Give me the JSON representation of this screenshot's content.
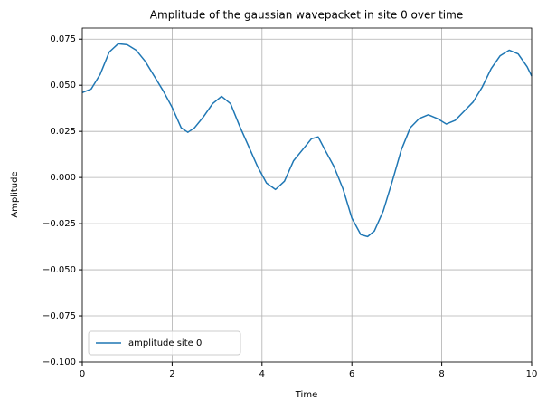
{
  "chart_data": {
    "type": "line",
    "title": "Amplitude of the gaussian wavepacket in site 0 over time",
    "xlabel": "Time",
    "ylabel": "Amplitude",
    "x": [
      0,
      0.2,
      0.4,
      0.6,
      0.8,
      1.0,
      1.2,
      1.4,
      1.6,
      1.8,
      2.0,
      2.2,
      2.35,
      2.5,
      2.7,
      2.9,
      3.1,
      3.3,
      3.5,
      3.7,
      3.9,
      4.1,
      4.3,
      4.5,
      4.7,
      4.9,
      5.1,
      5.25,
      5.4,
      5.6,
      5.8,
      6.0,
      6.2,
      6.35,
      6.5,
      6.7,
      6.9,
      7.1,
      7.3,
      7.5,
      7.7,
      7.9,
      8.1,
      8.3,
      8.5,
      8.7,
      8.9,
      9.1,
      9.3,
      9.5,
      9.7,
      9.9,
      10
    ],
    "series": [
      {
        "name": "amplitude site 0",
        "color": "#1f77b4",
        "values": [
          0.046,
          0.048,
          0.056,
          0.068,
          0.0725,
          0.072,
          0.069,
          0.063,
          0.055,
          0.047,
          0.038,
          0.027,
          0.0245,
          0.027,
          0.033,
          0.04,
          0.044,
          0.04,
          0.028,
          0.017,
          0.006,
          -0.003,
          -0.0065,
          -0.002,
          0.009,
          0.015,
          0.021,
          0.022,
          0.015,
          0.006,
          -0.006,
          -0.022,
          -0.031,
          -0.032,
          -0.029,
          -0.018,
          -0.002,
          0.015,
          0.027,
          0.032,
          0.034,
          0.032,
          0.029,
          0.031,
          0.036,
          0.041,
          0.049,
          0.059,
          0.066,
          0.069,
          0.067,
          0.06,
          0.055
        ]
      }
    ],
    "xlim": [
      0,
      10
    ],
    "xticks": [
      0,
      2,
      4,
      6,
      8,
      10
    ],
    "ylim": [
      -0.1,
      0.081
    ],
    "yticks": [
      {
        "value": -0.1,
        "label": "−0.100"
      },
      {
        "value": -0.075,
        "label": "−0.075"
      },
      {
        "value": -0.05,
        "label": "−0.050"
      },
      {
        "value": -0.025,
        "label": "−0.025"
      },
      {
        "value": 0,
        "label": "0.000"
      },
      {
        "value": 0.025,
        "label": "0.025"
      },
      {
        "value": 0.05,
        "label": "0.050"
      },
      {
        "value": 0.075,
        "label": "0.075"
      }
    ],
    "grid": true,
    "legend": "lower left"
  }
}
